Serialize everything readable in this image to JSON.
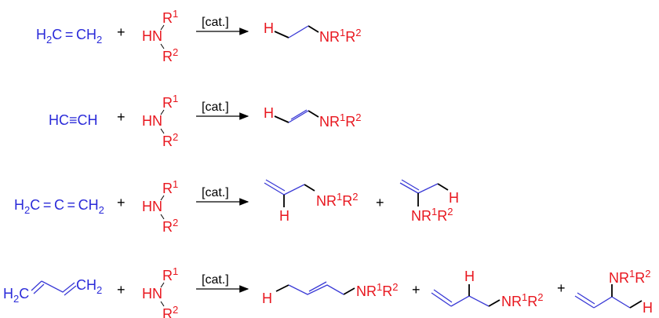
{
  "colors": {
    "reactant": "#2b2bd9",
    "amine": "#e8161e",
    "bond_new": "#000000"
  },
  "catalyst_label": "[cat.]",
  "plus": "+",
  "hydrogen": "H",
  "amine": {
    "r1": [
      [
        "R",
        "n"
      ],
      [
        "1",
        "sup"
      ]
    ],
    "hn": [
      [
        "HN",
        "n"
      ]
    ],
    "r2": [
      [
        "R",
        "n"
      ],
      [
        "2",
        "sup"
      ]
    ]
  },
  "amine_group": [
    [
      "NR",
      "n"
    ],
    [
      "1",
      "sup"
    ],
    [
      "R",
      "n"
    ],
    [
      "2",
      "sup"
    ]
  ],
  "reactions": [
    {
      "reactant": [
        [
          "H",
          "n"
        ],
        [
          "2",
          "sub"
        ],
        [
          "C = CH",
          "n"
        ],
        [
          "2",
          "sub"
        ]
      ]
    },
    {
      "reactant": [
        [
          "HC≡CH",
          "n"
        ]
      ]
    },
    {
      "reactant": [
        [
          "H",
          "n"
        ],
        [
          "2",
          "sub"
        ],
        [
          "C = C = CH",
          "n"
        ],
        [
          "2",
          "sub"
        ]
      ]
    },
    {
      "reactant_left": [
        [
          "H",
          "n"
        ],
        [
          "2",
          "sub"
        ],
        [
          "C",
          "n"
        ]
      ],
      "reactant_right": [
        [
          "CH",
          "n"
        ],
        [
          "2",
          "sub"
        ]
      ]
    }
  ]
}
